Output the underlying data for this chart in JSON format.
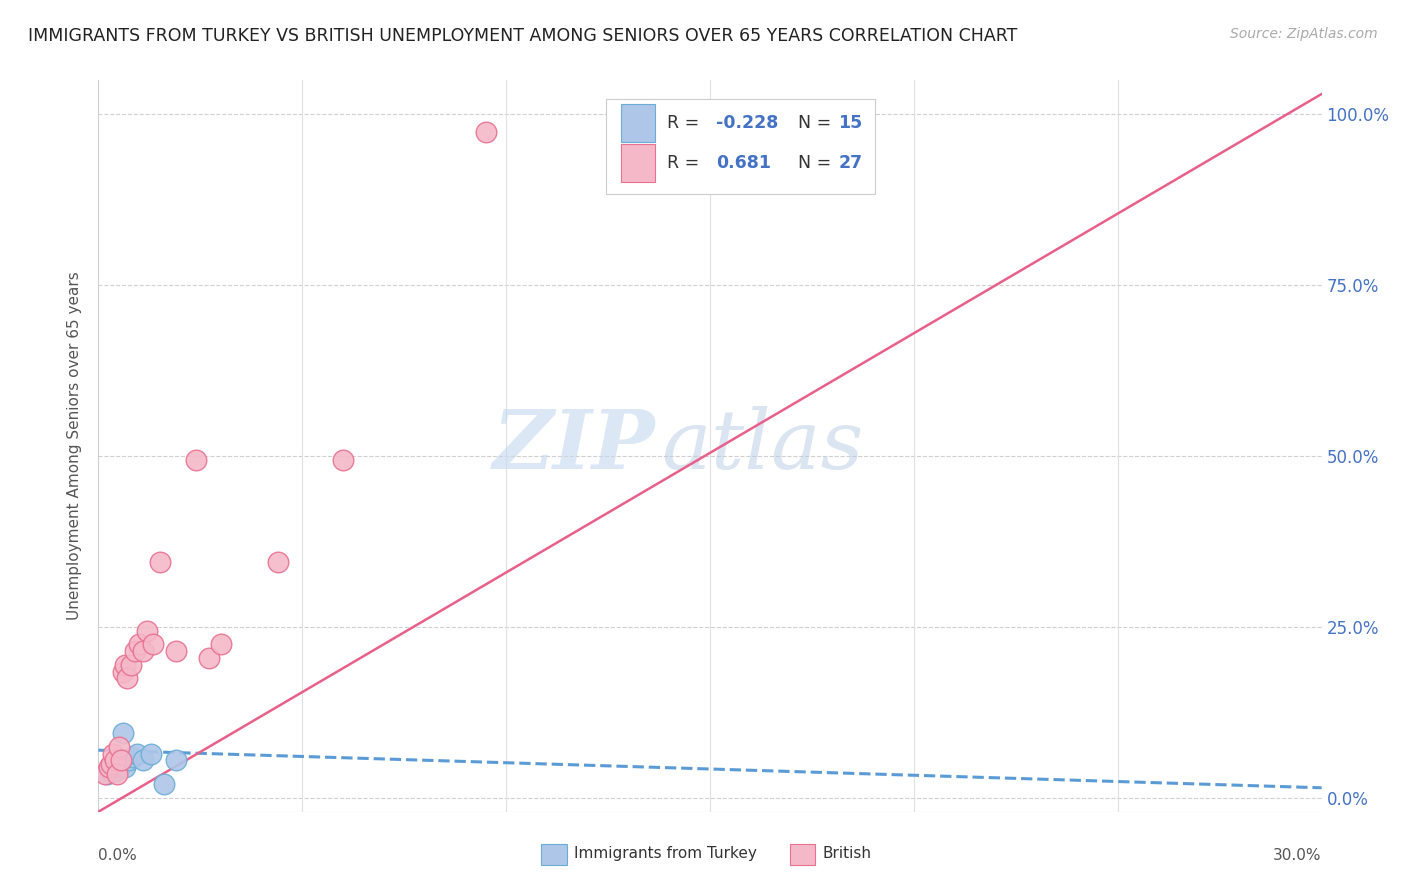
{
  "title": "IMMIGRANTS FROM TURKEY VS BRITISH UNEMPLOYMENT AMONG SENIORS OVER 65 YEARS CORRELATION CHART",
  "source": "Source: ZipAtlas.com",
  "ylabel": "Unemployment Among Seniors over 65 years",
  "xlim": [
    0.0,
    30.0
  ],
  "ylim": [
    -2.0,
    105.0
  ],
  "yticks": [
    0.0,
    25.0,
    50.0,
    75.0,
    100.0
  ],
  "ytick_labels_right": [
    "0.0%",
    "25.0%",
    "50.0%",
    "75.0%",
    "100.0%"
  ],
  "color_turkey": "#aec6e8",
  "color_british": "#f4b8c8",
  "color_turkey_edge": "#6aaed6",
  "color_british_edge": "#e87090",
  "color_turkey_line": "#5b9bd5",
  "color_british_line": "#e8608a",
  "background": "#ffffff",
  "watermark_zip": "ZIP",
  "watermark_atlas": "atlas",
  "turkey_x": [
    0.2,
    0.3,
    0.35,
    0.4,
    0.45,
    0.5,
    0.55,
    0.6,
    0.65,
    0.75,
    0.85,
    0.95,
    1.1,
    1.3,
    1.6,
    1.9
  ],
  "turkey_y": [
    3.5,
    4.0,
    4.5,
    4.0,
    5.0,
    4.5,
    5.0,
    9.5,
    4.5,
    5.5,
    6.0,
    6.5,
    5.5,
    6.5,
    2.0,
    5.5
  ],
  "british_x": [
    0.15,
    0.25,
    0.3,
    0.35,
    0.4,
    0.45,
    0.5,
    0.55,
    0.6,
    0.65,
    0.7,
    0.8,
    0.9,
    1.0,
    1.1,
    1.2,
    1.35,
    1.5,
    1.9,
    2.4,
    2.7,
    3.0,
    4.4,
    6.0,
    9.5,
    13.5,
    16.5
  ],
  "british_y": [
    3.5,
    4.5,
    5.0,
    6.5,
    5.5,
    3.5,
    7.5,
    5.5,
    18.5,
    19.5,
    17.5,
    19.5,
    21.5,
    22.5,
    21.5,
    24.5,
    22.5,
    34.5,
    21.5,
    49.5,
    20.5,
    22.5,
    34.5,
    49.5,
    97.5,
    100.0,
    97.0
  ],
  "turkey_line_x": [
    0.0,
    30.0
  ],
  "turkey_line_y": [
    7.0,
    1.5
  ],
  "british_line_x": [
    0.0,
    30.0
  ],
  "british_line_y": [
    -2.0,
    103.0
  ]
}
